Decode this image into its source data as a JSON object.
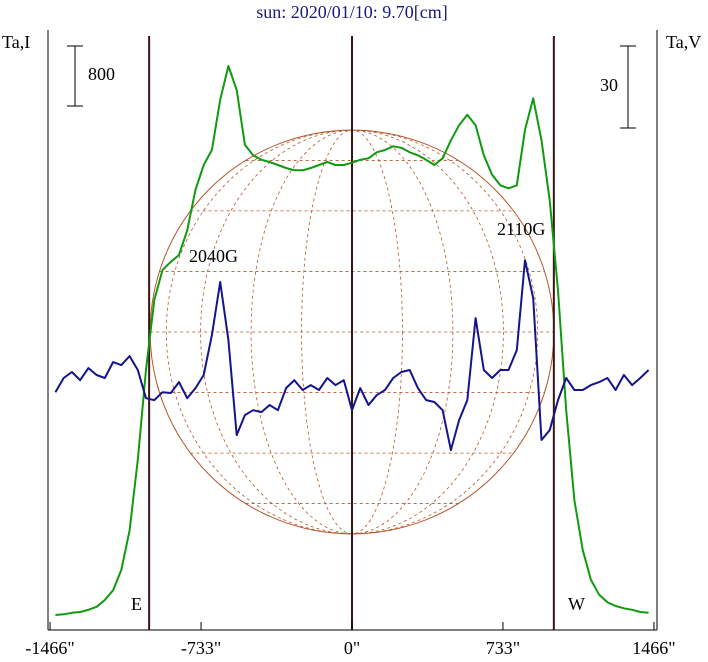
{
  "chart_data": {
    "type": "line",
    "title": "sun: 2020/01/10: 9.70[cm]",
    "y_label": "Ta,I",
    "y2_label": "Ta,V",
    "xlim": [
      -1476,
      1476
    ],
    "ylim": [
      -200,
      7800
    ],
    "y2lim": [
      -88.5,
      131
    ],
    "xticks": [
      {
        "value": -1466,
        "label": "-1466\""
      },
      {
        "value": -733,
        "label": "-733\""
      },
      {
        "value": 0,
        "label": "0\""
      },
      {
        "value": 733,
        "label": "733\""
      },
      {
        "value": 1466,
        "label": "1466\""
      }
    ],
    "scale_bars": [
      {
        "value": 800,
        "axis": "y"
      },
      {
        "value": 30,
        "axis": "y2"
      }
    ],
    "vertical_lines": [
      -985,
      0,
      980
    ],
    "limb_labels": [
      "E",
      "W"
    ],
    "disk_radius": 980,
    "annotations": [
      "2040G",
      "2110G"
    ],
    "x": [
      -1440,
      -1400,
      -1360,
      -1320,
      -1280,
      -1240,
      -1200,
      -1160,
      -1120,
      -1080,
      -1040,
      -1000,
      -960,
      -920,
      -880,
      -840,
      -800,
      -760,
      -720,
      -680,
      -640,
      -600,
      -560,
      -520,
      -480,
      -440,
      -400,
      -360,
      -320,
      -280,
      -240,
      -200,
      -160,
      -120,
      -80,
      -40,
      0,
      40,
      80,
      120,
      160,
      200,
      240,
      280,
      320,
      360,
      400,
      440,
      480,
      520,
      560,
      600,
      640,
      680,
      720,
      760,
      800,
      840,
      880,
      920,
      960,
      1000,
      1040,
      1080,
      1120,
      1160,
      1200,
      1240,
      1280,
      1320,
      1360,
      1400,
      1440
    ],
    "series": [
      {
        "color": "#109a10",
        "axis": "y",
        "values": [
          0,
          10,
          30,
          40,
          70,
          110,
          200,
          330,
          600,
          1130,
          2070,
          3270,
          4200,
          4600,
          4710,
          4800,
          5130,
          5670,
          6000,
          6200,
          6870,
          7320,
          7000,
          6270,
          6130,
          6070,
          6040,
          6000,
          5960,
          5930,
          5930,
          5960,
          6000,
          6040,
          6000,
          6000,
          6030,
          6070,
          6090,
          6170,
          6200,
          6250,
          6230,
          6170,
          6130,
          6070,
          6000,
          6090,
          6330,
          6530,
          6670,
          6530,
          6130,
          5870,
          5730,
          5690,
          5730,
          6470,
          6890,
          6330,
          5530,
          4330,
          2730,
          1530,
          870,
          470,
          270,
          170,
          120,
          90,
          70,
          40,
          30
        ]
      },
      {
        "color": "#14148c",
        "axis": "y2",
        "values": [
          -1.5,
          3.7,
          5.9,
          2.9,
          7.3,
          4.8,
          3.7,
          9.5,
          8.4,
          11.7,
          6.6,
          -3.7,
          -4.4,
          -1.5,
          -1.8,
          2.2,
          -3.7,
          0,
          4.8,
          19.4,
          38.8,
          17.6,
          -17.2,
          -9.9,
          -8.1,
          -8.8,
          -6.2,
          -8.1,
          0,
          2.9,
          -0.7,
          1.1,
          -0.7,
          3.7,
          1.1,
          2.9,
          -8.1,
          0,
          -6.2,
          -2.6,
          -0.7,
          3.7,
          5.9,
          6.6,
          0,
          -4.4,
          -5.1,
          -8.1,
          -22.7,
          -11.7,
          -4.4,
          25.6,
          6.6,
          3.7,
          6.6,
          6.6,
          13.9,
          46.8,
          32.9,
          -19.0,
          -15.4,
          -4.4,
          3.7,
          -0.7,
          -0.7,
          1.1,
          2.2,
          3.7,
          -0.7,
          4.8,
          1.1,
          3.7,
          6.6
        ]
      }
    ]
  }
}
